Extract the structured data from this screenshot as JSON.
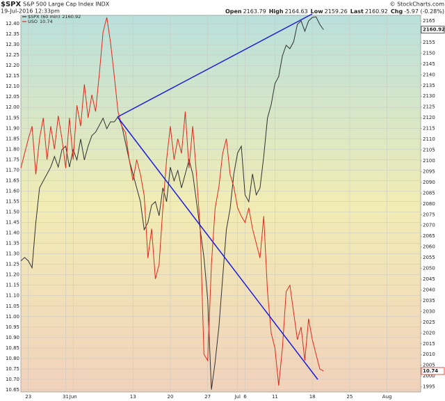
{
  "header": {
    "symbol": "$SPX",
    "name": "S&P 500 Large Cap Index INDX",
    "datetime": "19-Jul-2016 12:33pm",
    "credit": "© StockCharts.com",
    "quote": [
      {
        "label": "Open",
        "value": 2163.79
      },
      {
        "label": "High",
        "value": 2164.63
      },
      {
        "label": "Low",
        "value": 2159.26
      },
      {
        "label": "Last",
        "value": 2160.92
      },
      {
        "label": "Chg",
        "value": "-5.97 (-0.28%)"
      }
    ]
  },
  "chart_data": {
    "type": "line",
    "grid": true,
    "legend": "top-left",
    "xlim": [
      0,
      107
    ],
    "xticks": [
      {
        "value": 2,
        "label": "23"
      },
      {
        "value": 12,
        "label": "31"
      },
      {
        "value": 14,
        "label": "Jun"
      },
      {
        "value": 30,
        "label": "13"
      },
      {
        "value": 40,
        "label": "20"
      },
      {
        "value": 50,
        "label": "27"
      },
      {
        "value": 58,
        "label": "Jul"
      },
      {
        "value": 60,
        "label": "6"
      },
      {
        "value": 68,
        "label": "11"
      },
      {
        "value": 78,
        "label": "18"
      },
      {
        "value": 88,
        "label": "25"
      },
      {
        "value": 98,
        "label": "Aug"
      }
    ],
    "ylim": [
      10.64,
      12.44
    ],
    "yticks": [
      10.65,
      {
        "value": 10.7,
        "label": "10.70"
      },
      10.75,
      {
        "value": 10.8,
        "label": "10.80"
      },
      10.85,
      {
        "value": 10.9,
        "label": "10.90"
      },
      10.95,
      {
        "value": 11.0,
        "label": "11.00"
      },
      11.05,
      {
        "value": 11.1,
        "label": "11.10"
      },
      11.15,
      {
        "value": 11.2,
        "label": "11.20"
      },
      11.25,
      {
        "value": 11.3,
        "label": "11.30"
      },
      11.35,
      {
        "value": 11.4,
        "label": "11.40"
      },
      11.45,
      {
        "value": 11.5,
        "label": "11.50"
      },
      11.55,
      {
        "value": 11.6,
        "label": "11.60"
      },
      11.65,
      {
        "value": 11.7,
        "label": "11.70"
      },
      11.75,
      {
        "value": 11.8,
        "label": "11.80"
      },
      11.85,
      {
        "value": 11.9,
        "label": "11.90"
      },
      11.95,
      {
        "value": 12.0,
        "label": "12.00"
      },
      12.05,
      {
        "value": 12.1,
        "label": "12.10"
      },
      12.15,
      {
        "value": 12.2,
        "label": "12.20"
      },
      12.25,
      {
        "value": 12.3,
        "label": "12.30"
      },
      12.35,
      {
        "value": 12.4,
        "label": "12.40"
      }
    ],
    "y2lim": [
      1992.6,
      2167.6
    ],
    "y2ticks": [
      1995,
      2000,
      2005,
      2010,
      2015,
      2020,
      2025,
      2030,
      2035,
      2040,
      2045,
      2050,
      2055,
      2060,
      2065,
      2070,
      2075,
      2080,
      2085,
      2090,
      2095,
      2100,
      2105,
      2110,
      2115,
      2120,
      2125,
      2130,
      2135,
      2140,
      2145,
      2150,
      2155,
      2160,
      2165
    ],
    "series": [
      {
        "name": "$SPX (60 min)",
        "color": "#303030",
        "axis": "y2",
        "values": [
          2053.5,
          2055.1,
          2053.5,
          2050.3,
          2071.3,
          2087.4,
          2090.7,
          2093.9,
          2097.1,
          2102.0,
          2097.1,
          2105.2,
          2106.8,
          2097.1,
          2105.2,
          2100.4,
          2110.1,
          2100.4,
          2106.8,
          2111.7,
          2113.3,
          2116.5,
          2119.8,
          2114.9,
          2118.1,
          2118.1,
          2120.4,
          2116.5,
          2108.4,
          2100.4,
          2093.9,
          2087.4,
          2081.0,
          2068.0,
          2071.3,
          2079.4,
          2081.0,
          2074.5,
          2087.4,
          2081.0,
          2097.1,
          2090.7,
          2095.5,
          2087.4,
          2093.9,
          2100.4,
          2093.9,
          2081.0,
          2068.0,
          2055.1,
          2035.7,
          1993.7,
          2006.6,
          2022.8,
          2045.4,
          2068.0,
          2077.7,
          2093.9,
          2103.6,
          2106.8,
          2084.2,
          2081.0,
          2093.9,
          2084.2,
          2087.4,
          2102.0,
          2119.8,
          2126.2,
          2135.9,
          2139.1,
          2148.8,
          2153.7,
          2152.1,
          2155.3,
          2163.4,
          2165.0,
          2160.2,
          2165.0,
          2166.6,
          2166.9,
          2163.4,
          2160.92
        ]
      },
      {
        "name": "USO",
        "color": "#e0281c",
        "axis": "y",
        "values": [
          11.71,
          11.78,
          11.85,
          11.91,
          11.68,
          11.85,
          11.95,
          11.75,
          11.91,
          11.8,
          11.96,
          11.85,
          11.71,
          11.95,
          11.75,
          12.01,
          11.91,
          12.11,
          11.95,
          12.06,
          11.98,
          12.16,
          12.36,
          12.43,
          12.31,
          12.15,
          11.98,
          11.91,
          11.88,
          11.75,
          11.65,
          11.75,
          11.68,
          11.58,
          11.28,
          11.42,
          11.18,
          11.25,
          11.52,
          11.75,
          11.91,
          11.75,
          11.85,
          11.78,
          11.98,
          11.71,
          11.91,
          11.68,
          11.42,
          10.82,
          10.79,
          11.25,
          11.52,
          11.62,
          11.78,
          11.85,
          11.68,
          11.62,
          11.52,
          11.48,
          11.45,
          11.52,
          11.42,
          11.35,
          11.28,
          11.48,
          11.12,
          10.92,
          10.85,
          10.67,
          10.85,
          11.12,
          11.15,
          11.02,
          10.89,
          10.95,
          10.79,
          10.99,
          10.89,
          10.82,
          10.75,
          10.74
        ]
      }
    ]
  }
}
